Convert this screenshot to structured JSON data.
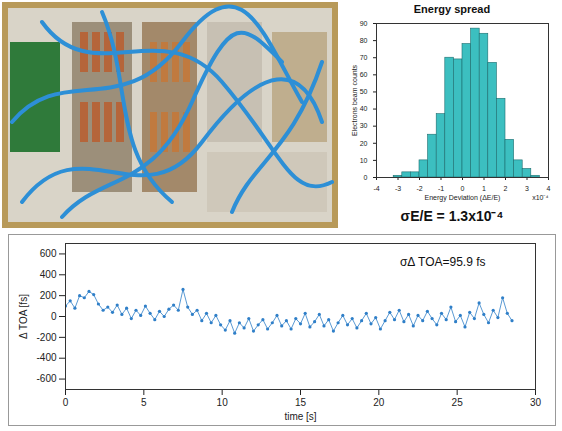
{
  "chart_data": [
    {
      "type": "histogram",
      "title": "Energy spread",
      "xlabel": "Energy Deviation (ΔE/E)",
      "ylabel": "Electrons beam counts",
      "bins": [
        -3.2,
        -2.8,
        -2.4,
        -2.0,
        -1.6,
        -1.2,
        -0.8,
        -0.4,
        0,
        0.4,
        0.8,
        1.2,
        1.6,
        2.0,
        2.4,
        2.8,
        3.2,
        3.6
      ],
      "values": [
        1,
        3,
        3,
        10,
        25,
        37,
        70,
        69,
        78,
        87,
        84,
        67,
        46,
        22,
        10,
        5,
        1
      ],
      "color": "#3cbfc0",
      "xlim": [
        -4,
        4
      ],
      "xticks": [
        -4,
        -3,
        -2,
        -1,
        0,
        1,
        2,
        3,
        4
      ],
      "ylim": [
        0,
        90
      ],
      "yticks": [
        0,
        10,
        20,
        30,
        40,
        50,
        60,
        70,
        80,
        90
      ],
      "annotations": [
        "x10⁻⁴",
        "σE/E = 1.3x10⁻⁴"
      ]
    },
    {
      "type": "line",
      "marker": "circle",
      "xlabel": "time [s]",
      "ylabel": "Δ TOA [fs]",
      "color": "#2f7fc8",
      "x": [
        0.0,
        0.3,
        0.6,
        0.9,
        1.2,
        1.5,
        1.8,
        2.1,
        2.4,
        2.7,
        3.0,
        3.3,
        3.6,
        3.9,
        4.2,
        4.5,
        4.8,
        5.1,
        5.4,
        5.7,
        6.0,
        6.3,
        6.6,
        6.9,
        7.2,
        7.5,
        7.8,
        8.1,
        8.4,
        8.7,
        9.0,
        9.3,
        9.6,
        9.9,
        10.2,
        10.5,
        10.8,
        11.1,
        11.4,
        11.7,
        12.0,
        12.3,
        12.6,
        12.9,
        13.2,
        13.5,
        13.8,
        14.1,
        14.4,
        14.7,
        15.0,
        15.3,
        15.6,
        15.9,
        16.2,
        16.5,
        16.8,
        17.1,
        17.4,
        17.7,
        18.0,
        18.3,
        18.6,
        18.9,
        19.2,
        19.5,
        19.8,
        20.1,
        20.4,
        20.7,
        21.0,
        21.3,
        21.6,
        21.9,
        22.2,
        22.5,
        22.8,
        23.1,
        23.4,
        23.7,
        24.0,
        24.3,
        24.6,
        24.9,
        25.2,
        25.5,
        25.8,
        26.1,
        26.4,
        26.7,
        27.0,
        27.3,
        27.6,
        27.9,
        28.2,
        28.5
      ],
      "values": [
        100,
        150,
        80,
        200,
        180,
        240,
        210,
        120,
        60,
        90,
        40,
        110,
        20,
        80,
        -20,
        60,
        10,
        100,
        30,
        -30,
        50,
        0,
        70,
        110,
        60,
        260,
        90,
        20,
        60,
        -40,
        30,
        -60,
        10,
        -80,
        -130,
        -40,
        -160,
        -60,
        -110,
        -20,
        -140,
        -80,
        -30,
        -120,
        -60,
        10,
        -90,
        -40,
        -120,
        -20,
        -70,
        30,
        -100,
        -50,
        20,
        -90,
        -30,
        -140,
        -60,
        10,
        -80,
        -20,
        -110,
        -40,
        30,
        -70,
        -10,
        -120,
        -40,
        40,
        -30,
        60,
        -50,
        20,
        -90,
        10,
        -40,
        50,
        -20,
        -80,
        30,
        -30,
        90,
        -50,
        10,
        -100,
        40,
        -20,
        130,
        20,
        -60,
        60,
        -10,
        180,
        30,
        -40
      ],
      "xlim": [
        0,
        30
      ],
      "xticks": [
        0,
        5,
        10,
        15,
        20,
        25,
        30
      ],
      "ylim": [
        -700,
        700
      ],
      "yticks": [
        -600,
        -400,
        -200,
        0,
        200,
        400,
        600
      ],
      "annotations": [
        "σΔ TOA=95.9 fs"
      ]
    }
  ]
}
